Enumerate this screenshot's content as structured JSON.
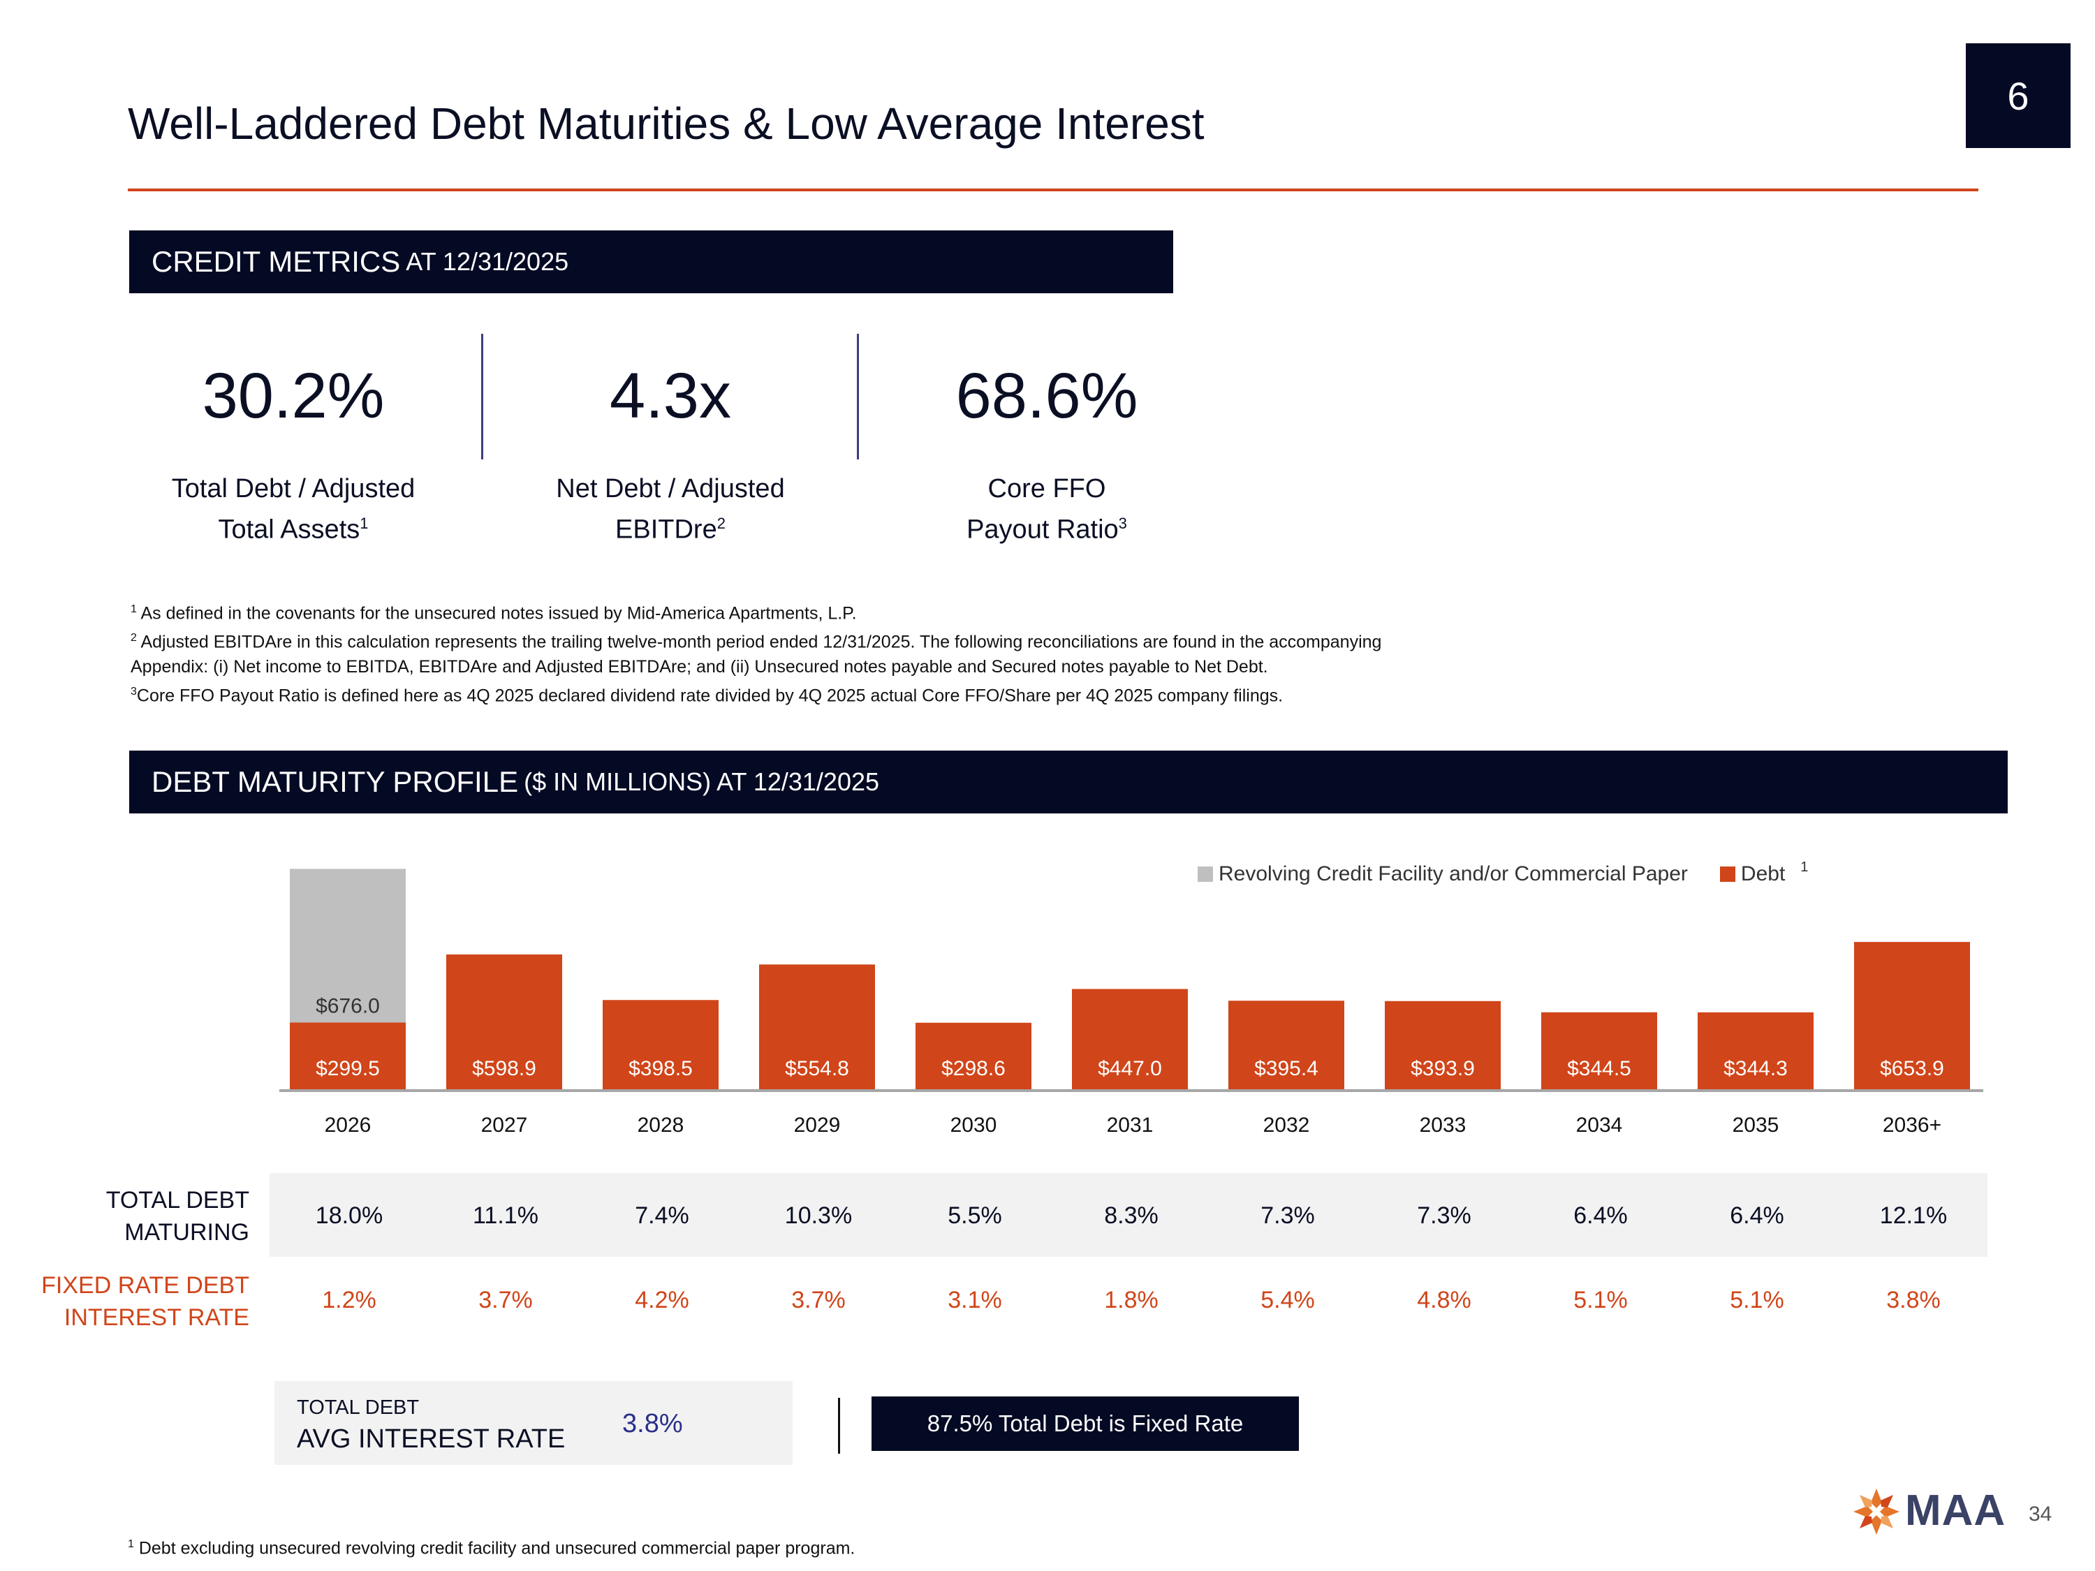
{
  "slide": {
    "title": "Well-Laddered Debt Maturities & Low Average Interest",
    "section_number": "6",
    "page_number": "34"
  },
  "credit_metrics": {
    "header_main": "CREDIT METRICS",
    "header_sub": "AT 12/31/2025",
    "items": [
      {
        "value": "30.2%",
        "label_line1": "Total Debt / Adjusted",
        "label_line2": "Total Assets",
        "sup": "1"
      },
      {
        "value": "4.3x",
        "label_line1": "Net Debt / Adjusted",
        "label_line2": "EBITDre",
        "sup": "2"
      },
      {
        "value": "68.6%",
        "label_line1": "Core FFO",
        "label_line2": "Payout Ratio",
        "sup": "3"
      }
    ],
    "footnotes": [
      {
        "sup": "1",
        "text": " As defined in the covenants for the unsecured notes issued by Mid-America Apartments, L.P."
      },
      {
        "sup": "2",
        "text": " Adjusted EBITDAre in this calculation represents the trailing twelve-month period ended 12/31/2025. The following reconciliations are found in the accompanying"
      },
      {
        "sup": "",
        "text": "Appendix: (i) Net income to EBITDA, EBITDAre and Adjusted EBITDAre; and (ii) Unsecured notes payable and Secured notes payable to Net Debt."
      },
      {
        "sup": "3",
        "text": "Core FFO Payout Ratio is defined here as 4Q 2025 declared dividend rate divided by 4Q 2025 actual Core FFO/Share per 4Q 2025 company filings."
      }
    ]
  },
  "debt_profile": {
    "header_main": "DEBT MATURITY PROFILE",
    "header_sub": "($ IN MILLIONS) AT 12/31/2025",
    "rows": {
      "total_debt_label_1": "TOTAL DEBT",
      "total_debt_label_2": "MATURING",
      "fixed_rate_label_1": "FIXED RATE DEBT",
      "fixed_rate_label_2": "INTEREST RATE",
      "total_debt_maturing": [
        "18.0%",
        "11.1%",
        "7.4%",
        "10.3%",
        "5.5%",
        "8.3%",
        "7.3%",
        "7.3%",
        "6.4%",
        "6.4%",
        "12.1%"
      ],
      "fixed_rate_interest": [
        "1.2%",
        "3.7%",
        "4.2%",
        "3.7%",
        "3.1%",
        "1.8%",
        "5.4%",
        "4.8%",
        "5.1%",
        "5.1%",
        "3.8%"
      ]
    },
    "avg_rate": {
      "label_top": "TOTAL DEBT",
      "label_main": "AVG INTEREST RATE",
      "value": "3.8%"
    },
    "fixed_note": "87.5% Total Debt is Fixed Rate",
    "bottom_footnote": {
      "sup": "1",
      "text": " Debt excluding unsecured revolving credit facility and unsecured commercial paper program."
    }
  },
  "chart_data": {
    "type": "bar",
    "stacked": true,
    "title": "",
    "xlabel": "",
    "ylabel": "",
    "categories": [
      "2026",
      "2027",
      "2028",
      "2029",
      "2030",
      "2031",
      "2032",
      "2033",
      "2034",
      "2035",
      "2036+"
    ],
    "series": [
      {
        "name": "Debt",
        "color": "#d04519",
        "values": [
          299.5,
          598.9,
          398.5,
          554.8,
          298.6,
          447.0,
          395.4,
          393.9,
          344.5,
          344.3,
          653.9
        ],
        "labels": [
          "$299.5",
          "$598.9",
          "$398.5",
          "$554.8",
          "$298.6",
          "$447.0",
          "$395.4",
          "$393.9",
          "$344.5",
          "$344.3",
          "$653.9"
        ]
      },
      {
        "name": "Revolving Credit Facility and/or Commercial Paper",
        "color": "#bfbfbf",
        "values": [
          676.0,
          0,
          0,
          0,
          0,
          0,
          0,
          0,
          0,
          0,
          0
        ],
        "labels": [
          "$676.0",
          "",
          "",
          "",
          "",
          "",
          "",
          "",
          "",
          "",
          ""
        ]
      }
    ],
    "legend": [
      {
        "name": "Revolving Credit Facility and/or Commercial Paper",
        "color": "#bfbfbf"
      },
      {
        "name": "Debt",
        "color": "#d04519",
        "sup": "1"
      }
    ],
    "legend_position": "top-right",
    "ylim": [
      0,
      1000
    ]
  },
  "logo": {
    "text": "MAA"
  }
}
